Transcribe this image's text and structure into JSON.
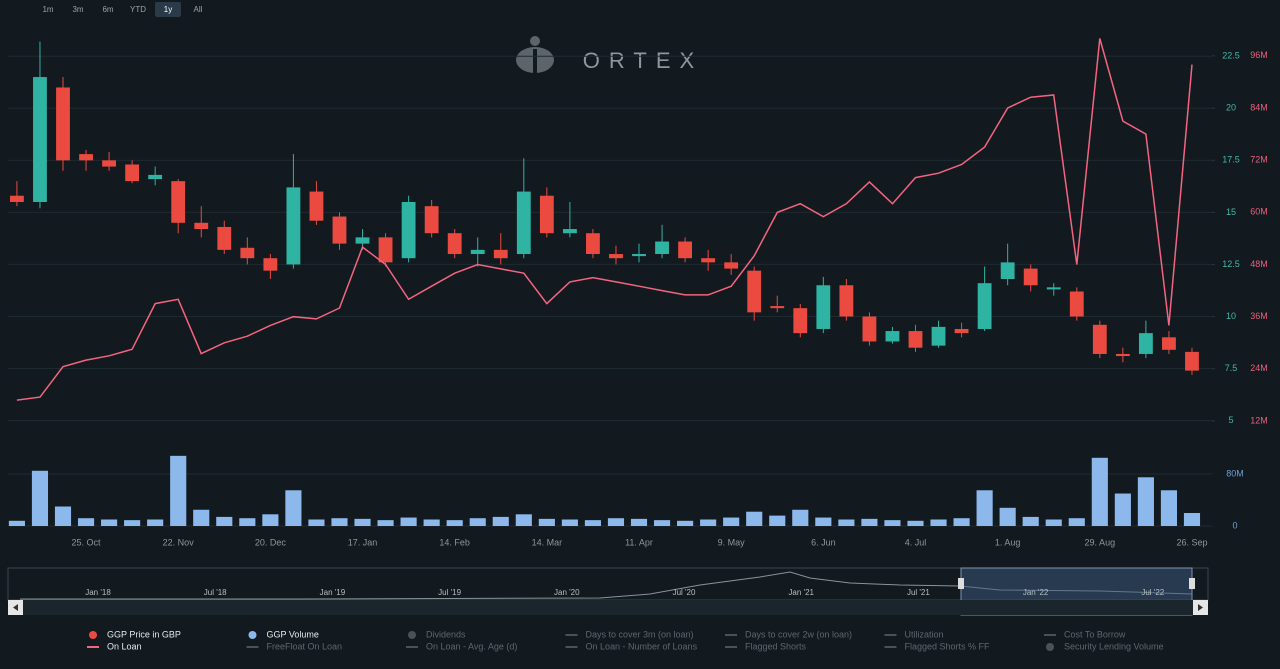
{
  "brand": "ORTEX",
  "range_buttons": [
    "1m",
    "3m",
    "6m",
    "YTD",
    "1y",
    "All"
  ],
  "selected_range": 4,
  "chart_data": {
    "type": "candlestick",
    "categories": [
      null,
      null,
      null,
      "25. Oct",
      null,
      null,
      null,
      "22. Nov",
      null,
      null,
      null,
      "20. Dec",
      null,
      null,
      null,
      "17. Jan",
      null,
      null,
      null,
      "14. Feb",
      null,
      null,
      null,
      "14. Mar",
      null,
      null,
      null,
      "11. Apr",
      null,
      null,
      null,
      "9. May",
      null,
      null,
      null,
      "6. Jun",
      null,
      null,
      null,
      "4. Jul",
      null,
      null,
      null,
      "1. Aug",
      null,
      null,
      null,
      "29. Aug",
      null,
      null,
      null,
      "26. Sep"
    ],
    "price": {
      "name": "GGP Price in GBP",
      "up_color": "#2fb3a3",
      "down_color": "#ea4a3f",
      "open": [
        15.8,
        15.5,
        21,
        17.8,
        17.5,
        17.3,
        16.6,
        16.5,
        14.5,
        14.3,
        13.3,
        12.8,
        12.5,
        16,
        14.8,
        13.5,
        13.8,
        12.8,
        15.3,
        14,
        13,
        13.2,
        13,
        15.8,
        14,
        14,
        13,
        12.9,
        13,
        13.6,
        12.8,
        12.6,
        12.2,
        10.5,
        10.4,
        9.4,
        11.5,
        10,
        8.8,
        9.3,
        8.6,
        9.4,
        9.4,
        11.8,
        12.3,
        11.3,
        11.2,
        9.6,
        8.2,
        8.2,
        9,
        8.3
      ],
      "high": [
        16.5,
        23.2,
        21.5,
        18,
        17.9,
        17.5,
        17.2,
        16.6,
        15.3,
        14.6,
        13.8,
        13,
        17.8,
        16.5,
        15,
        14.2,
        14,
        15.8,
        15.6,
        14.2,
        13.8,
        14,
        17.6,
        16.2,
        15.5,
        14.2,
        13.4,
        13.5,
        14.4,
        13.8,
        13.2,
        13,
        12.4,
        11,
        10.6,
        11.9,
        11.8,
        10.2,
        9.5,
        9.6,
        9.8,
        9.7,
        12.4,
        13.5,
        12.5,
        11.6,
        11.4,
        9.8,
        8.5,
        9.8,
        9.3,
        8.5
      ],
      "low": [
        15.3,
        15.2,
        17,
        17,
        17,
        16.4,
        16.3,
        14,
        13.8,
        13,
        12.5,
        11.8,
        12.3,
        14.4,
        13.2,
        13.2,
        12.4,
        12.6,
        13.8,
        12.8,
        12.4,
        12.5,
        12.8,
        13.8,
        13.8,
        12.8,
        12.5,
        12.6,
        12.8,
        12.6,
        12.2,
        12,
        9.8,
        10.2,
        9,
        9.2,
        9.8,
        8.6,
        8.7,
        8.3,
        8.5,
        9,
        9.3,
        11.5,
        11.2,
        11,
        9.8,
        8,
        7.8,
        8,
        8.2,
        7.2
      ],
      "close": [
        15.5,
        21.5,
        17.5,
        17.5,
        17.2,
        16.5,
        16.8,
        14.5,
        14.2,
        13.2,
        12.8,
        12.2,
        16.2,
        14.6,
        13.5,
        13.8,
        12.6,
        15.5,
        14,
        13,
        13.2,
        12.8,
        16,
        14,
        14.2,
        13,
        12.8,
        13,
        13.6,
        12.8,
        12.6,
        12.3,
        10.2,
        10.4,
        9.2,
        11.5,
        10,
        8.8,
        9.3,
        8.5,
        9.5,
        9.2,
        11.6,
        12.6,
        11.5,
        11.4,
        10,
        8.2,
        8.1,
        9.2,
        8.4,
        7.4
      ]
    },
    "loan": {
      "name": "On Loan",
      "color": "#f4647f",
      "axis": "y2",
      "values": [
        16.8,
        17.5,
        24.5,
        26,
        27,
        28.5,
        39,
        40,
        27.5,
        30,
        31.5,
        34,
        36,
        35.5,
        38,
        52,
        48,
        40,
        43,
        46,
        48,
        47,
        46,
        39,
        44,
        45,
        44,
        43,
        42,
        41,
        41,
        43,
        50,
        60,
        62,
        59,
        62,
        67,
        62,
        68,
        69,
        71,
        75,
        84,
        86.5,
        87,
        48,
        100,
        81,
        78,
        34,
        94
      ]
    },
    "volume": {
      "name": "GGP Volume",
      "color": "#8db8ec",
      "values": [
        8,
        85,
        30,
        12,
        10,
        9,
        10,
        108,
        25,
        14,
        12,
        18,
        55,
        10,
        12,
        11,
        9,
        13,
        10,
        9,
        12,
        14,
        18,
        11,
        10,
        9,
        12,
        11,
        9,
        8,
        10,
        13,
        22,
        16,
        25,
        13,
        10,
        11,
        9,
        8,
        10,
        12,
        55,
        28,
        14,
        10,
        12,
        105,
        50,
        75,
        55,
        20
      ]
    },
    "ylim": [
      4.5,
      24
    ],
    "yticks": [
      5,
      7.5,
      10,
      12.5,
      15,
      17.5,
      20,
      22.5
    ],
    "y2lim": [
      9.7,
      103.1
    ],
    "y2ticks": [
      {
        "value": 12,
        "label": "12M"
      },
      {
        "value": 24,
        "label": "24M"
      },
      {
        "value": 36,
        "label": "36M"
      },
      {
        "value": 48,
        "label": "48M"
      },
      {
        "value": 60,
        "label": "60M"
      },
      {
        "value": 72,
        "label": "72M"
      },
      {
        "value": 84,
        "label": "84M"
      },
      {
        "value": 96,
        "label": "96M"
      }
    ],
    "volume_ylim": [
      0,
      117
    ],
    "volume_ticks": [
      0,
      {
        "value": 80,
        "label": "80M"
      }
    ],
    "grid": true,
    "navigator_labels": [
      "Jan '18",
      "Jul '18",
      "Jan '19",
      "Jul '19",
      "Jan '20",
      "Jul '20",
      "Jan '21",
      "Jul '21",
      "Jan '22",
      "Jul '22"
    ],
    "legend_inactive": [
      {
        "label": "Dividends",
        "marker": "dot"
      },
      {
        "label": "Days to cover 3m (on loan)",
        "marker": "line"
      },
      {
        "label": "Days to cover 2w (on loan)",
        "marker": "line"
      },
      {
        "label": "Utilization",
        "marker": "line"
      },
      {
        "label": "Cost To Borrow",
        "marker": "line"
      },
      {
        "label": "FreeFloat On Loan",
        "marker": "line"
      },
      {
        "label": "On Loan - Avg. Age (d)",
        "marker": "line"
      },
      {
        "label": "On Loan - Number of Loans",
        "marker": "line"
      },
      {
        "label": "Flagged Shorts",
        "marker": "line"
      },
      {
        "label": "Flagged Shorts % FF",
        "marker": "line"
      },
      {
        "label": "Security Lending Volume",
        "marker": "dot"
      }
    ]
  }
}
